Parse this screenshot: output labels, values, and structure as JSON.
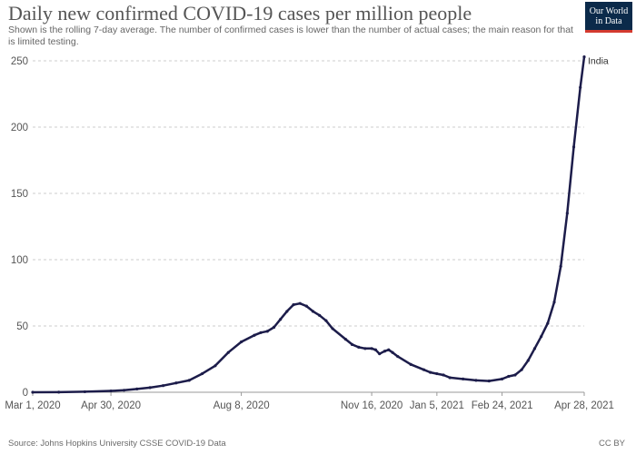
{
  "title": "Daily new confirmed COVID-19 cases per million people",
  "subtitle": "Shown is the rolling 7-day average. The number of confirmed cases is lower than the number of actual cases; the main reason for that is limited testing.",
  "logo": {
    "line1": "Our World",
    "line2": "in Data"
  },
  "footer": {
    "source": "Source: Johns Hopkins University CSSE COVID-19 Data",
    "license": "CC BY"
  },
  "colors": {
    "line": "#1c1c4a",
    "grid": "#cccccc",
    "axis_text": "#555555",
    "logo_bg": "#0b2a4a",
    "logo_accent": "#d43a2f"
  },
  "chart_data": {
    "type": "line",
    "title": "Daily new confirmed COVID-19 cases per million people",
    "xlabel": "",
    "ylabel": "",
    "ylim": [
      0,
      250
    ],
    "yticks": [
      0,
      50,
      100,
      150,
      200,
      250
    ],
    "xticks": [
      {
        "day": 0,
        "label": "Mar 1, 2020"
      },
      {
        "day": 60,
        "label": "Apr 30, 2020"
      },
      {
        "day": 160,
        "label": "Aug 8, 2020"
      },
      {
        "day": 260,
        "label": "Nov 16, 2020"
      },
      {
        "day": 310,
        "label": "Jan 5, 2021"
      },
      {
        "day": 360,
        "label": "Feb 24, 2021"
      },
      {
        "day": 423,
        "label": "Apr 28, 2021"
      }
    ],
    "grid": true,
    "series": [
      {
        "name": "India",
        "points": [
          [
            0,
            0
          ],
          [
            20,
            0.1
          ],
          [
            40,
            0.4
          ],
          [
            60,
            1
          ],
          [
            70,
            1.5
          ],
          [
            80,
            2.5
          ],
          [
            90,
            3.5
          ],
          [
            100,
            5
          ],
          [
            110,
            7
          ],
          [
            120,
            9
          ],
          [
            130,
            14
          ],
          [
            140,
            20
          ],
          [
            150,
            30
          ],
          [
            160,
            38
          ],
          [
            170,
            43
          ],
          [
            175,
            45
          ],
          [
            180,
            46
          ],
          [
            185,
            49
          ],
          [
            190,
            55
          ],
          [
            195,
            61
          ],
          [
            200,
            66
          ],
          [
            205,
            67
          ],
          [
            210,
            65
          ],
          [
            215,
            61
          ],
          [
            220,
            58
          ],
          [
            225,
            54
          ],
          [
            230,
            48
          ],
          [
            240,
            40
          ],
          [
            245,
            36
          ],
          [
            250,
            34
          ],
          [
            255,
            33
          ],
          [
            260,
            33
          ],
          [
            263,
            32
          ],
          [
            266,
            29
          ],
          [
            270,
            31
          ],
          [
            273,
            32
          ],
          [
            276,
            30
          ],
          [
            280,
            27
          ],
          [
            290,
            21
          ],
          [
            300,
            17
          ],
          [
            305,
            15
          ],
          [
            310,
            14
          ],
          [
            315,
            13
          ],
          [
            320,
            11
          ],
          [
            330,
            10
          ],
          [
            340,
            9
          ],
          [
            350,
            8.5
          ],
          [
            360,
            10
          ],
          [
            365,
            12
          ],
          [
            370,
            13
          ],
          [
            375,
            17
          ],
          [
            380,
            24
          ],
          [
            385,
            33
          ],
          [
            390,
            42
          ],
          [
            395,
            52
          ],
          [
            400,
            68
          ],
          [
            405,
            95
          ],
          [
            410,
            135
          ],
          [
            415,
            185
          ],
          [
            420,
            230
          ],
          [
            423,
            253
          ]
        ]
      }
    ]
  }
}
